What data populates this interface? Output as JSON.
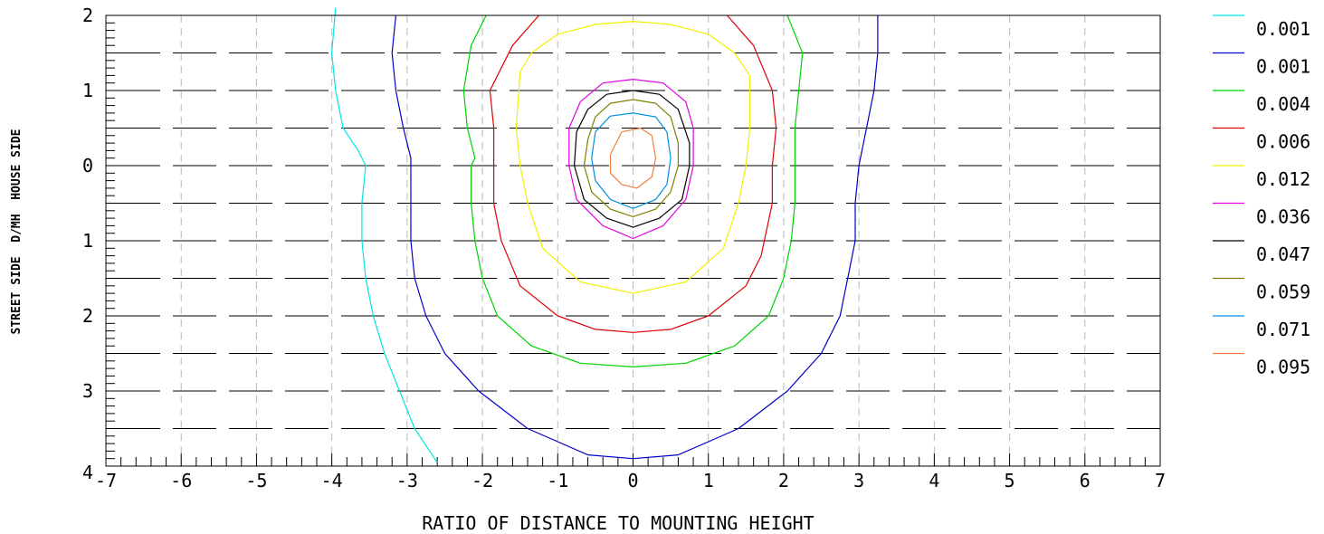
{
  "chart_data": {
    "type": "contour",
    "xlabel": "RATIO OF DISTANCE TO MOUNTING HEIGHT",
    "ylabel": "STREET SIDE  D/MH  HOUSE SIDE",
    "xlim": [
      -7,
      7
    ],
    "ylim": [
      -4,
      2
    ],
    "x_ticks": [
      "-7",
      "-6",
      "-5",
      "-4",
      "-3",
      "-2",
      "-1",
      "0",
      "1",
      "2",
      "3",
      "4",
      "5",
      "6",
      "7"
    ],
    "y_ticks": [
      {
        "v": 2,
        "label": "2"
      },
      {
        "v": 1,
        "label": "1"
      },
      {
        "v": 0,
        "label": "0"
      },
      {
        "v": -1,
        "label": "1"
      },
      {
        "v": -2,
        "label": "2"
      },
      {
        "v": -3,
        "label": "3"
      },
      {
        "v": -4,
        "label": "4"
      }
    ],
    "grid": true,
    "legend_position": "right",
    "series": [
      {
        "name": "0.001",
        "color": "#00e5e5",
        "points": [
          [
            -3.95,
            2.1
          ],
          [
            -4.0,
            1.5
          ],
          [
            -3.95,
            1
          ],
          [
            -3.85,
            0.5
          ],
          [
            -3.65,
            0.2
          ],
          [
            -3.55,
            0
          ],
          [
            -3.6,
            -0.5
          ],
          [
            -3.6,
            -1
          ],
          [
            -3.55,
            -1.5
          ],
          [
            -3.45,
            -2
          ],
          [
            -3.3,
            -2.5
          ],
          [
            -3.1,
            -3
          ],
          [
            -2.9,
            -3.5
          ],
          [
            -2.6,
            -3.95
          ]
        ]
      },
      {
        "name": "0.001",
        "color": "#0000c8",
        "points": [
          [
            -3.15,
            2.0
          ],
          [
            -3.2,
            1.5
          ],
          [
            -3.15,
            1
          ],
          [
            -3.05,
            0.5
          ],
          [
            -2.95,
            0.1
          ],
          [
            -2.95,
            0
          ],
          [
            -2.95,
            -0.5
          ],
          [
            -2.95,
            -1
          ],
          [
            -2.9,
            -1.5
          ],
          [
            -2.75,
            -2
          ],
          [
            -2.5,
            -2.5
          ],
          [
            -2.05,
            -3
          ],
          [
            -1.4,
            -3.5
          ],
          [
            -0.6,
            -3.85
          ],
          [
            0,
            -3.9
          ],
          [
            0.6,
            -3.85
          ],
          [
            1.4,
            -3.5
          ],
          [
            2.05,
            -3
          ],
          [
            2.5,
            -2.5
          ],
          [
            2.75,
            -2
          ],
          [
            2.85,
            -1.5
          ],
          [
            2.95,
            -1
          ],
          [
            2.95,
            -0.5
          ],
          [
            3.0,
            0
          ],
          [
            3.1,
            0.5
          ],
          [
            3.2,
            1
          ],
          [
            3.25,
            1.5
          ],
          [
            3.25,
            2.0
          ]
        ]
      },
      {
        "name": "0.004",
        "color": "#00d400",
        "points": [
          [
            -1.95,
            2.0
          ],
          [
            -2.15,
            1.6
          ],
          [
            -2.25,
            1
          ],
          [
            -2.2,
            0.5
          ],
          [
            -2.1,
            0.1
          ],
          [
            -2.15,
            0
          ],
          [
            -2.15,
            -0.5
          ],
          [
            -2.1,
            -1
          ],
          [
            -2.0,
            -1.5
          ],
          [
            -1.8,
            -2
          ],
          [
            -1.35,
            -2.4
          ],
          [
            -0.7,
            -2.63
          ],
          [
            0,
            -2.68
          ],
          [
            0.7,
            -2.63
          ],
          [
            1.35,
            -2.4
          ],
          [
            1.8,
            -2
          ],
          [
            2.0,
            -1.5
          ],
          [
            2.1,
            -1
          ],
          [
            2.15,
            -0.5
          ],
          [
            2.15,
            0
          ],
          [
            2.15,
            0.5
          ],
          [
            2.2,
            1
          ],
          [
            2.25,
            1.5
          ],
          [
            2.05,
            2.0
          ]
        ]
      },
      {
        "name": "0.006",
        "color": "#e00000",
        "points": [
          [
            -1.25,
            2.0
          ],
          [
            -1.6,
            1.6
          ],
          [
            -1.9,
            1
          ],
          [
            -1.85,
            0.5
          ],
          [
            -1.85,
            0
          ],
          [
            -1.85,
            -0.5
          ],
          [
            -1.75,
            -1
          ],
          [
            -1.5,
            -1.6
          ],
          [
            -1.0,
            -2.0
          ],
          [
            -0.5,
            -2.18
          ],
          [
            0,
            -2.22
          ],
          [
            0.5,
            -2.18
          ],
          [
            1.0,
            -2.0
          ],
          [
            1.5,
            -1.6
          ],
          [
            1.7,
            -1.2
          ],
          [
            1.85,
            -0.5
          ],
          [
            1.85,
            0
          ],
          [
            1.9,
            0.5
          ],
          [
            1.85,
            1
          ],
          [
            1.6,
            1.6
          ],
          [
            1.25,
            2.0
          ]
        ]
      },
      {
        "name": "0.012",
        "color": "#f0f000",
        "points": [
          [
            -1.5,
            1.25
          ],
          [
            -1.35,
            1.5
          ],
          [
            -1.0,
            1.75
          ],
          [
            -0.5,
            1.88
          ],
          [
            0,
            1.92
          ],
          [
            0.5,
            1.88
          ],
          [
            1.0,
            1.75
          ],
          [
            1.35,
            1.5
          ],
          [
            1.55,
            1.2
          ],
          [
            1.55,
            0.5
          ],
          [
            1.5,
            0
          ],
          [
            1.4,
            -0.5
          ],
          [
            1.2,
            -1.1
          ],
          [
            0.7,
            -1.55
          ],
          [
            0,
            -1.7
          ],
          [
            -0.7,
            -1.55
          ],
          [
            -1.2,
            -1.1
          ],
          [
            -1.4,
            -0.5
          ],
          [
            -1.5,
            0
          ],
          [
            -1.55,
            0.5
          ],
          [
            -1.5,
            1.25
          ]
        ]
      },
      {
        "name": "0.036",
        "color": "#e000e0",
        "points": [
          [
            -0.4,
            1.1
          ],
          [
            0,
            1.15
          ],
          [
            0.4,
            1.1
          ],
          [
            0.7,
            0.85
          ],
          [
            0.8,
            0.5
          ],
          [
            0.8,
            0
          ],
          [
            0.7,
            -0.45
          ],
          [
            0.4,
            -0.8
          ],
          [
            0,
            -0.97
          ],
          [
            -0.4,
            -0.8
          ],
          [
            -0.75,
            -0.45
          ],
          [
            -0.85,
            0
          ],
          [
            -0.85,
            0.5
          ],
          [
            -0.7,
            0.85
          ],
          [
            -0.4,
            1.1
          ]
        ]
      },
      {
        "name": "0.047",
        "color": "#000000",
        "points": [
          [
            -0.35,
            0.95
          ],
          [
            0,
            1.0
          ],
          [
            0.35,
            0.95
          ],
          [
            0.6,
            0.75
          ],
          [
            0.75,
            0.3
          ],
          [
            0.75,
            0
          ],
          [
            0.65,
            -0.45
          ],
          [
            0.35,
            -0.7
          ],
          [
            0,
            -0.82
          ],
          [
            -0.35,
            -0.7
          ],
          [
            -0.65,
            -0.45
          ],
          [
            -0.78,
            0
          ],
          [
            -0.75,
            0.45
          ],
          [
            -0.6,
            0.75
          ],
          [
            -0.35,
            0.95
          ]
        ]
      },
      {
        "name": "0.059",
        "color": "#808000",
        "points": [
          [
            -0.3,
            0.83
          ],
          [
            0,
            0.88
          ],
          [
            0.3,
            0.83
          ],
          [
            0.5,
            0.65
          ],
          [
            0.6,
            0.3
          ],
          [
            0.6,
            0
          ],
          [
            0.5,
            -0.35
          ],
          [
            0.3,
            -0.58
          ],
          [
            0,
            -0.68
          ],
          [
            -0.3,
            -0.58
          ],
          [
            -0.55,
            -0.35
          ],
          [
            -0.65,
            0
          ],
          [
            -0.6,
            0.35
          ],
          [
            -0.5,
            0.65
          ],
          [
            -0.3,
            0.83
          ]
        ]
      },
      {
        "name": "0.071",
        "color": "#0090e0",
        "points": [
          [
            -0.3,
            0.66
          ],
          [
            0,
            0.7
          ],
          [
            0.3,
            0.65
          ],
          [
            0.45,
            0.45
          ],
          [
            0.5,
            0.1
          ],
          [
            0.45,
            -0.25
          ],
          [
            0.3,
            -0.45
          ],
          [
            0,
            -0.57
          ],
          [
            -0.3,
            -0.45
          ],
          [
            -0.5,
            -0.2
          ],
          [
            -0.55,
            0.1
          ],
          [
            -0.5,
            0.45
          ],
          [
            -0.3,
            0.66
          ]
        ]
      },
      {
        "name": "0.095",
        "color": "#f08040",
        "points": [
          [
            -0.15,
            0.45
          ],
          [
            0.1,
            0.5
          ],
          [
            0.25,
            0.4
          ],
          [
            0.3,
            0.1
          ],
          [
            0.25,
            -0.15
          ],
          [
            0.05,
            -0.3
          ],
          [
            -0.15,
            -0.25
          ],
          [
            -0.3,
            -0.1
          ],
          [
            -0.3,
            0.15
          ],
          [
            -0.2,
            0.35
          ],
          [
            -0.15,
            0.45
          ]
        ]
      }
    ]
  }
}
